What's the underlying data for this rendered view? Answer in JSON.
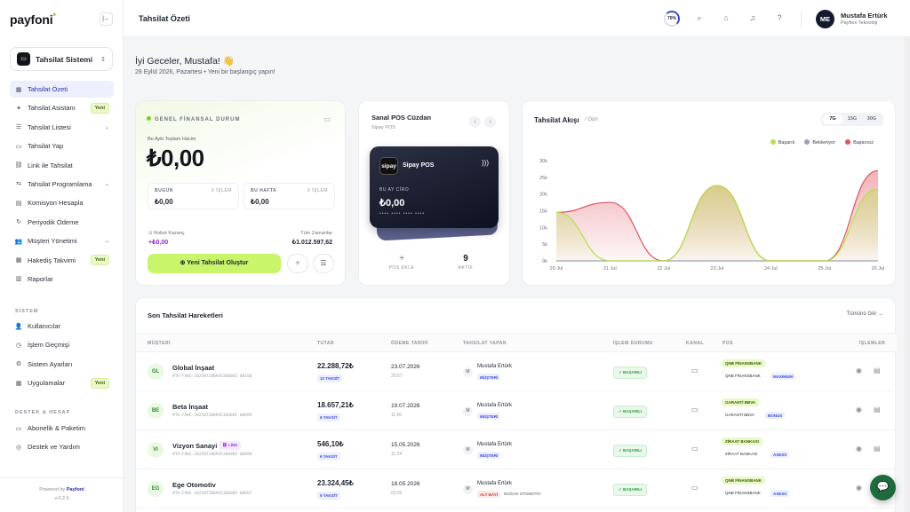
{
  "brand": {
    "logo": "payfoni",
    "star": "*"
  },
  "system": {
    "icon": "▭",
    "label": "Tahsilat Sistemi"
  },
  "nav": {
    "items": [
      {
        "icon": "▦",
        "label": "Tahsilat Özeti",
        "active": true
      },
      {
        "icon": "✦",
        "label": "Tahsilat Asistanı",
        "badge": "Yeni"
      },
      {
        "icon": "☰",
        "label": "Tahsilat Listesi",
        "chevron": true
      },
      {
        "icon": "▭",
        "label": "Tahsilat Yap"
      },
      {
        "icon": "⛓",
        "label": "Link ile Tahsilat"
      },
      {
        "icon": "⇆",
        "label": "Tahsilat Programlama",
        "chevron": true
      },
      {
        "icon": "▤",
        "label": "Komisyon Hesapla"
      },
      {
        "icon": "↻",
        "label": "Periyodik Ödeme"
      },
      {
        "icon": "👥",
        "label": "Müşteri Yönetimi",
        "chevron": true
      },
      {
        "icon": "▦",
        "label": "Hakediş Takvimi",
        "badge": "Yeni"
      },
      {
        "icon": "▥",
        "label": "Raporlar"
      }
    ]
  },
  "system_section": {
    "title": "SİSTEM",
    "items": [
      {
        "icon": "👤",
        "label": "Kullanıcılar"
      },
      {
        "icon": "◷",
        "label": "İşlem Geçmişi"
      },
      {
        "icon": "⚙",
        "label": "Sistem Ayarları"
      },
      {
        "icon": "▦",
        "label": "Uygulamalar",
        "badge": "Yeni"
      }
    ]
  },
  "support_section": {
    "title": "DESTEK & HESAP",
    "items": [
      {
        "icon": "▭",
        "label": "Abonelik & Paketim"
      },
      {
        "icon": "◎",
        "label": "Destek ve Yardım"
      }
    ]
  },
  "footer": {
    "powered": "Powered by",
    "brand": "Payfoni",
    "version": "v.4.2.0"
  },
  "topbar": {
    "title": "Tahsilat Özeti",
    "progress": "70%",
    "progress_fraction": 0.7,
    "icons": [
      "search-icon",
      "gift-icon",
      "bell-icon",
      "help-icon"
    ],
    "user": {
      "initials": "ME",
      "name": "Mustafa Ertürk",
      "company": "Payfoni Teknoloji"
    }
  },
  "greeting": {
    "title": "İyi Geceler, Mustafa! 👋",
    "subtitle": "28 Eylül 2026, Pazartesi • Yeni bir başlangıç yapın!"
  },
  "financial": {
    "label": "GENEL FİNANSAL DURUM",
    "month_label": "Bu Ayki Toplam Hacim",
    "total": "₺0,00",
    "today": {
      "label": "BUGÜN",
      "count": "0 İŞLEM",
      "value": "₺0,00"
    },
    "week": {
      "label": "BU HAFTA",
      "count": "0 İŞLEM",
      "value": "₺0,00"
    },
    "robot": {
      "label": "⊙ Robot Kazanç",
      "value": "+₺0,00"
    },
    "alltime": {
      "label": "Tüm Zamanlar",
      "value": "₺1.012.597,62"
    },
    "cta": "⊕  Yeni Tahsilat Oluştur",
    "btn1": "✧",
    "btn2": "☰"
  },
  "wallet": {
    "title": "Sanal POS Cüzdan",
    "subtitle": "Sipay POS",
    "prev": "‹",
    "next": "›",
    "card": {
      "logo": "sipay",
      "name": "Sipay POS",
      "label": "BU AY CİRO",
      "amount": "₺0,00",
      "dots": "•••• •••• •••• ••••"
    },
    "add": {
      "n": "+",
      "t": "POS EKLE"
    },
    "active": {
      "n": "9",
      "t": "AKTİF"
    }
  },
  "chart_panel": {
    "title": "Tahsilat Akışı",
    "subtitle": "/ Gün",
    "ranges": [
      "7G",
      "15G",
      "30G"
    ],
    "active_range": "7G",
    "legend": [
      {
        "name": "Başarılı",
        "color": "#b6e04c"
      },
      {
        "name": "Bekleniyor",
        "color": "#9aa0b8"
      },
      {
        "name": "Başarısız",
        "color": "#e0545f"
      }
    ]
  },
  "chart_data": {
    "type": "area",
    "categories": [
      "20 Jul",
      "21 Jul",
      "22 Jul",
      "23 Jul",
      "24 Jul",
      "25 Jul",
      "26 Jul"
    ],
    "y_ticks": [
      "0k",
      "5k",
      "10k",
      "15k",
      "20k",
      "25k",
      "30k"
    ],
    "ylim": [
      0,
      30000
    ],
    "series": [
      {
        "name": "Başarılı",
        "color": "#b6e04c",
        "values": [
          14500,
          0,
          0,
          22500,
          0,
          0,
          21500
        ]
      },
      {
        "name": "Bekleniyor",
        "color": "#9aa0b8",
        "values": [
          0,
          0,
          0,
          0,
          0,
          0,
          0
        ]
      },
      {
        "name": "Başarısız",
        "color": "#e0545f",
        "values": [
          14500,
          17500,
          0,
          22500,
          0,
          0,
          27000
        ]
      }
    ]
  },
  "transactions": {
    "title": "Son Tahsilat Hareketleri",
    "see_all": "Tümünü Gör →",
    "headers": [
      "MÜŞTERİ",
      "TUTAR",
      "ÖDEME TARİHİ",
      "TAHSİLAT YAPAN",
      "İŞLEM DURUMU",
      "KANAL",
      "POS",
      "İŞLEMLER"
    ],
    "rows": [
      {
        "initials": "GL",
        "name": "Global İnşaat",
        "code": "#TH-FAKE-20250728094536600I-00100",
        "link": "",
        "amount": "22.288,72₺",
        "installment": "12 TAKSİT",
        "date": "23.07.2026",
        "time": "20:57",
        "user": "Mustafa Ertürk",
        "role": "MÜŞTERİ",
        "role_red": false,
        "role_extra": "",
        "status": "✓ BAŞARILI",
        "channel": "▭",
        "bank": "QNB FİNANSBANK",
        "bank2": "QNB FİNANSBANK",
        "card_type": "MAXIMUM",
        "view": "◉",
        "doc": "▤"
      },
      {
        "initials": "BE",
        "name": "Beta İnşaat",
        "code": "#TH-FAKE-20250728094536600I-00099",
        "link": "",
        "amount": "18.657,21₺",
        "installment": "6 TAKSİT",
        "date": "19.07.2026",
        "time": "11:00",
        "user": "Mustafa Ertürk",
        "role": "MÜŞTERİ",
        "role_red": false,
        "role_extra": "",
        "status": "✓ BAŞARILI",
        "channel": "▭",
        "bank": "GARANTİ BBVA",
        "bank2": "GARANTİ BBVA",
        "card_type": "BONUS",
        "view": "◉",
        "doc": "▤"
      },
      {
        "initials": "VI",
        "name": "Vizyon Sanayi",
        "code": "#TH-FAKE-20250728094536600I-00098",
        "link": "⛓ LİNK",
        "amount": "546,10₺",
        "installment": "6 TAKSİT",
        "date": "15.05.2026",
        "time": "11:24",
        "user": "Mustafa Ertürk",
        "role": "MÜŞTERİ",
        "role_red": false,
        "role_extra": "",
        "status": "✓ BAŞARILI",
        "channel": "▭",
        "bank": "ZİRAAT BANKASI",
        "bank2": "ZİRAAT BANKASI",
        "card_type": "AXESS",
        "view": "◉",
        "doc": "▤"
      },
      {
        "initials": "EG",
        "name": "Ege Otomotiv",
        "code": "#TH-FAKE-20250728094536600I-00097",
        "link": "",
        "amount": "23.324,45₺",
        "installment": "9 TAKSİT",
        "date": "18.05.2026",
        "time": "02:02",
        "user": "Mustafa Ertürk",
        "role": "ALT BAYİ",
        "role_red": true,
        "role_extra": "DOĞAN OTOMOTİV",
        "status": "✓ BAŞARILI",
        "channel": "▭",
        "bank": "QNB FİNANSBANK",
        "bank2": "QNB FİNANSBANK",
        "card_type": "AXESS",
        "view": "◉",
        "doc": "▤"
      }
    ]
  },
  "chat": "💬"
}
